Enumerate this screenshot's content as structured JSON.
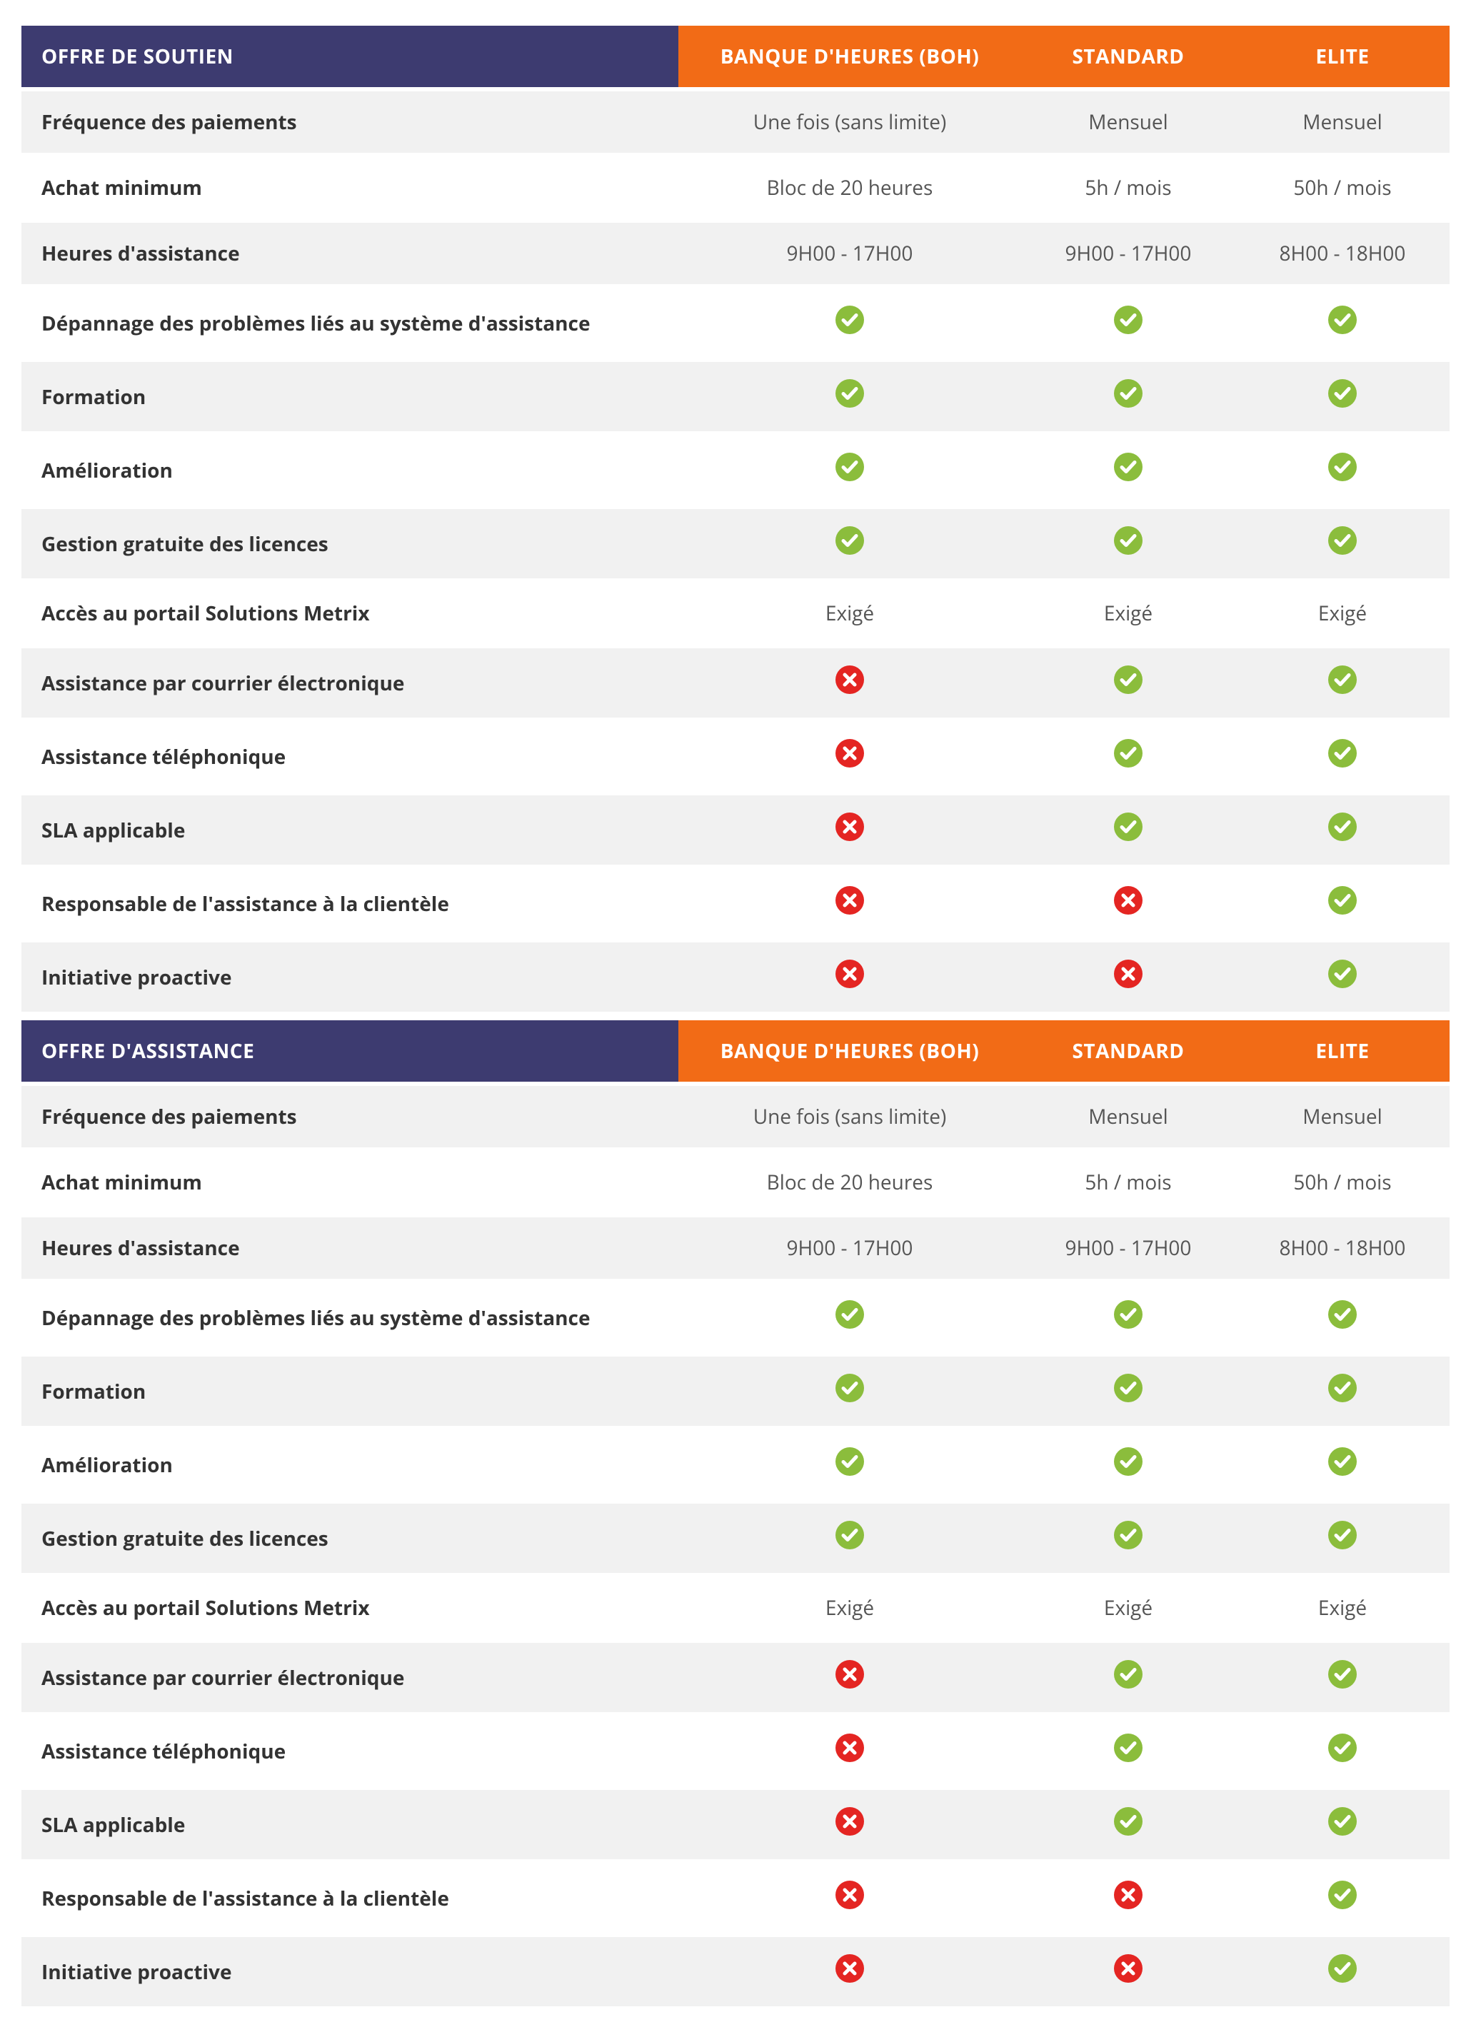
{
  "colors": {
    "header_label_bg": "#3d3b70",
    "header_plan_bg": "#f26b16",
    "header_text": "#ffffff",
    "row_bg": "#f1f1f1",
    "row_alt_bg": "#ffffff",
    "row_divider": "#ffffff",
    "label_text": "#333333",
    "value_text": "#555555",
    "check_color": "#8bbd3c",
    "cross_color": "#e42522"
  },
  "tables": [
    {
      "title": "OFFRE DE SOUTIEN",
      "plans": [
        "BANQUE D'HEURES (BOH)",
        "STANDARD",
        "ELITE"
      ],
      "rows": [
        {
          "label": "Fréquence des paiements",
          "values": [
            "Une fois (sans limite)",
            "Mensuel",
            "Mensuel"
          ]
        },
        {
          "label": "Achat minimum",
          "values": [
            "Bloc de 20 heures",
            "5h / mois",
            "50h / mois"
          ]
        },
        {
          "label": "Heures d'assistance",
          "values": [
            "9H00 - 17H00",
            "9H00 - 17H00",
            "8H00 - 18H00"
          ]
        },
        {
          "label": "Dépannage des problèmes liés au système d'assistance",
          "values": [
            "check",
            "check",
            "check"
          ]
        },
        {
          "label": "Formation",
          "values": [
            "check",
            "check",
            "check"
          ]
        },
        {
          "label": "Amélioration",
          "values": [
            "check",
            "check",
            "check"
          ]
        },
        {
          "label": "Gestion gratuite des licences",
          "values": [
            "check",
            "check",
            "check"
          ]
        },
        {
          "label": "Accès au portail Solutions Metrix",
          "values": [
            "Exigé",
            "Exigé",
            "Exigé"
          ]
        },
        {
          "label": "Assistance par courrier électronique",
          "values": [
            "cross",
            "check",
            "check"
          ]
        },
        {
          "label": "Assistance téléphonique",
          "values": [
            "cross",
            "check",
            "check"
          ]
        },
        {
          "label": "SLA applicable",
          "values": [
            "cross",
            "check",
            "check"
          ]
        },
        {
          "label": "Responsable de l'assistance à la clientèle",
          "values": [
            "cross",
            "cross",
            "check"
          ]
        },
        {
          "label": "Initiative proactive",
          "values": [
            "cross",
            "cross",
            "check"
          ]
        }
      ]
    },
    {
      "title": "OFFRE D'ASSISTANCE",
      "plans": [
        "BANQUE D'HEURES (BOH)",
        "STANDARD",
        "ELITE"
      ],
      "rows": [
        {
          "label": "Fréquence des paiements",
          "values": [
            "Une fois (sans limite)",
            "Mensuel",
            "Mensuel"
          ]
        },
        {
          "label": "Achat minimum",
          "values": [
            "Bloc de 20 heures",
            "5h / mois",
            "50h / mois"
          ]
        },
        {
          "label": "Heures d'assistance",
          "values": [
            "9H00 - 17H00",
            "9H00 - 17H00",
            "8H00 - 18H00"
          ]
        },
        {
          "label": "Dépannage des problèmes liés au système d'assistance",
          "values": [
            "check",
            "check",
            "check"
          ]
        },
        {
          "label": "Formation",
          "values": [
            "check",
            "check",
            "check"
          ]
        },
        {
          "label": "Amélioration",
          "values": [
            "check",
            "check",
            "check"
          ]
        },
        {
          "label": "Gestion gratuite des licences",
          "values": [
            "check",
            "check",
            "check"
          ]
        },
        {
          "label": "Accès au portail Solutions Metrix",
          "values": [
            "Exigé",
            "Exigé",
            "Exigé"
          ]
        },
        {
          "label": "Assistance par courrier électronique",
          "values": [
            "cross",
            "check",
            "check"
          ]
        },
        {
          "label": "Assistance téléphonique",
          "values": [
            "cross",
            "check",
            "check"
          ]
        },
        {
          "label": "SLA applicable",
          "values": [
            "cross",
            "check",
            "check"
          ]
        },
        {
          "label": "Responsable de l'assistance à la clientèle",
          "values": [
            "cross",
            "cross",
            "check"
          ]
        },
        {
          "label": "Initiative proactive",
          "values": [
            "cross",
            "cross",
            "check"
          ]
        }
      ]
    }
  ]
}
